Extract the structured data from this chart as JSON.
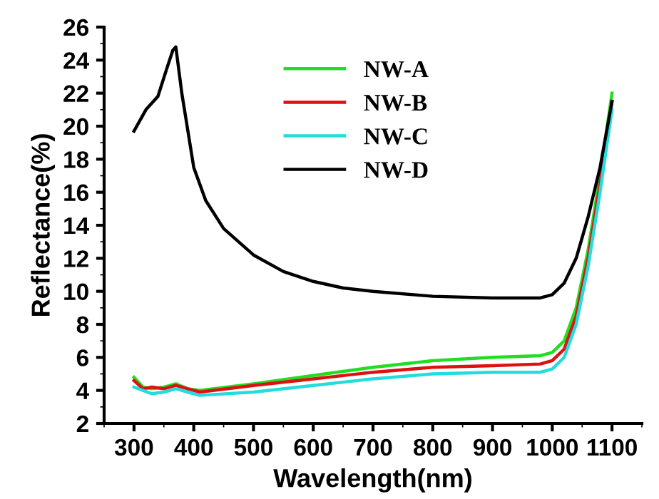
{
  "chart_data": {
    "type": "line",
    "xlabel": "Wavelength(nm)",
    "ylabel": "Reflectance(%)",
    "xlim": [
      250,
      1150
    ],
    "xticks": [
      300,
      400,
      500,
      600,
      700,
      800,
      900,
      1000,
      1100
    ],
    "ylim": [
      2,
      26
    ],
    "yticks": [
      2,
      4,
      6,
      8,
      10,
      12,
      14,
      16,
      18,
      20,
      22,
      24,
      26
    ],
    "grid": false,
    "legend": "top",
    "line_style": "solid",
    "series": [
      {
        "name": "NW-A",
        "color": "#22dd22",
        "x": [
          300,
          315,
          330,
          350,
          370,
          390,
          410,
          500,
          600,
          700,
          800,
          900,
          980,
          1000,
          1020,
          1040,
          1060,
          1080,
          1100
        ],
        "values": [
          4.8,
          4.2,
          4.1,
          4.2,
          4.4,
          4.1,
          4.0,
          4.4,
          4.9,
          5.4,
          5.8,
          6.0,
          6.1,
          6.3,
          7,
          9,
          12.5,
          17,
          22
        ]
      },
      {
        "name": "NW-B",
        "color": "#dd1111",
        "x": [
          300,
          315,
          330,
          350,
          370,
          390,
          410,
          500,
          600,
          700,
          800,
          900,
          980,
          1000,
          1020,
          1040,
          1060,
          1080,
          1100
        ],
        "values": [
          4.6,
          4.1,
          4.2,
          4.1,
          4.3,
          4.1,
          3.9,
          4.3,
          4.7,
          5.1,
          5.4,
          5.5,
          5.6,
          5.8,
          6.5,
          8.5,
          12,
          16.5,
          21.5
        ]
      },
      {
        "name": "NW-C",
        "color": "#22dddd",
        "x": [
          300,
          330,
          350,
          370,
          390,
          410,
          500,
          600,
          700,
          800,
          900,
          980,
          1000,
          1020,
          1040,
          1060,
          1080,
          1100
        ],
        "values": [
          4.2,
          3.8,
          3.9,
          4.1,
          3.9,
          3.7,
          3.9,
          4.3,
          4.7,
          5.0,
          5.1,
          5.1,
          5.3,
          6,
          8,
          11.5,
          16,
          21
        ]
      },
      {
        "name": "NW-D",
        "color": "#000000",
        "x": [
          300,
          320,
          340,
          355,
          365,
          370,
          380,
          400,
          420,
          450,
          500,
          550,
          600,
          650,
          700,
          800,
          900,
          980,
          1000,
          1020,
          1040,
          1060,
          1080,
          1100
        ],
        "values": [
          19.7,
          21,
          21.8,
          23.5,
          24.6,
          24.8,
          22,
          17.5,
          15.5,
          13.8,
          12.2,
          11.2,
          10.6,
          10.2,
          10.0,
          9.7,
          9.6,
          9.6,
          9.8,
          10.5,
          12,
          14.5,
          17.5,
          21.5
        ]
      }
    ]
  }
}
